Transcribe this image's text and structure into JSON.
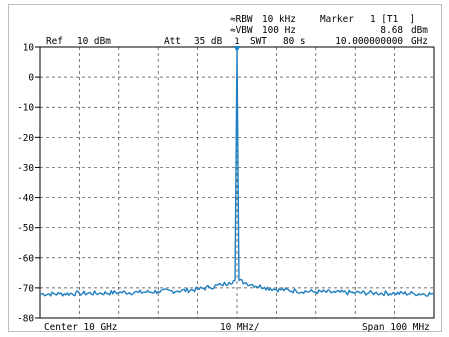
{
  "header": {
    "rbw_label": "≈RBW",
    "rbw_value": "10 kHz",
    "vbw_label": "≈VBW",
    "vbw_value": "100 Hz",
    "swt_label": "SWT",
    "swt_value": "80 s",
    "marker_label": "Marker",
    "marker_id": "1 [T1  ]",
    "marker_level": "8.68",
    "marker_level_unit": "dBm",
    "marker_freq": "10.000000000",
    "marker_freq_unit": "GHz",
    "ref_label": "Ref",
    "ref_value": "10 dBm",
    "att_label": "Att",
    "att_value": "35 dB"
  },
  "footer": {
    "center": "Center 10 GHz",
    "div": "10 MHz/",
    "span": "Span 100 MHz"
  },
  "colors": {
    "trace": "#1f7fc1",
    "grid": "#444444"
  },
  "chart_data": {
    "type": "line",
    "title": "",
    "xlabel": "",
    "ylabel": "",
    "xlim": [
      9950,
      10050
    ],
    "ylim": [
      -80,
      10
    ],
    "yticks": [
      10,
      0,
      -10,
      -20,
      -30,
      -40,
      -50,
      -60,
      -70,
      -80
    ],
    "ytick_labels": [
      "10",
      "0",
      "-10",
      "-20",
      "-30",
      "-40",
      "-50",
      "-60",
      "-70",
      "-80"
    ],
    "grid": true,
    "grid_style": "dashed",
    "marker": {
      "label": "1",
      "x": 10000,
      "y": 8.68
    },
    "series": [
      {
        "x": [
          9950,
          9955,
          9960,
          9965,
          9970,
          9975,
          9980,
          9985,
          9990,
          9993,
          9996,
          9998,
          9999.5,
          10000,
          10000.5,
          10002,
          10004,
          10007,
          10010,
          10015,
          10020,
          10025,
          10030,
          10035,
          10040,
          10045,
          10050
        ],
        "y": [
          -72,
          -72,
          -71.8,
          -71.8,
          -71.5,
          -71.5,
          -71.2,
          -71,
          -70.5,
          -69.8,
          -69,
          -68.2,
          -67.5,
          8.68,
          -67.5,
          -68.3,
          -69,
          -69.8,
          -70.5,
          -71,
          -71.3,
          -71.5,
          -71.6,
          -71.7,
          -71.8,
          -71.9,
          -72
        ]
      }
    ]
  }
}
